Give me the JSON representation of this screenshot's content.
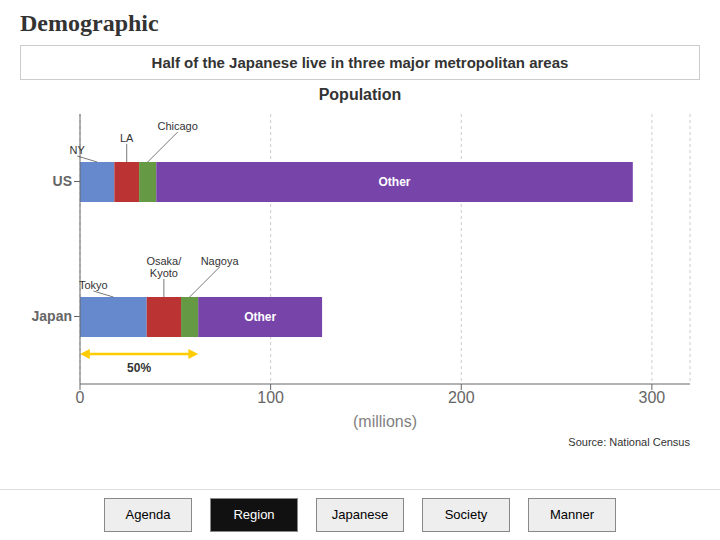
{
  "chart_data": {
    "type": "bar",
    "orientation": "horizontal",
    "stacked": true,
    "title": "Demographic",
    "subtitle": "Half of the Japanese live in three major metropolitan areas",
    "chart_title": "Population",
    "xlabel": "(millions)",
    "categories": [
      "Japan",
      "US"
    ],
    "series": [
      {
        "color": "#6688cc",
        "values": [
          35,
          18
        ]
      },
      {
        "color": "#bb3333",
        "values": [
          18,
          13
        ]
      },
      {
        "color": "#669944",
        "values": [
          9,
          9
        ]
      },
      {
        "name": "Other",
        "color": "#7744aa",
        "values": [
          65,
          250
        ]
      }
    ],
    "xlim": [
      0,
      320
    ],
    "xticks": [
      0,
      100,
      200,
      300
    ],
    "grid": true,
    "annotations": [
      {
        "text": "NY",
        "category": "US",
        "series": 0
      },
      {
        "text": "LA",
        "category": "US",
        "series": 1
      },
      {
        "text": "Chicago",
        "category": "US",
        "series": 2
      },
      {
        "text": "Tokyo",
        "category": "Japan",
        "series": 0
      },
      {
        "text": "Osaka/\nKyoto",
        "category": "Japan",
        "series": 1
      },
      {
        "text": "Nagoya",
        "category": "Japan",
        "series": 2
      }
    ],
    "range_arrow": {
      "start": 0,
      "end": 62,
      "text": "50%",
      "color": "#ffcc00"
    },
    "source": "Source: National Census",
    "nav_buttons": [
      "Agenda",
      "Region",
      "Japanese",
      "Society",
      "Manner"
    ],
    "nav_active": "Region"
  }
}
